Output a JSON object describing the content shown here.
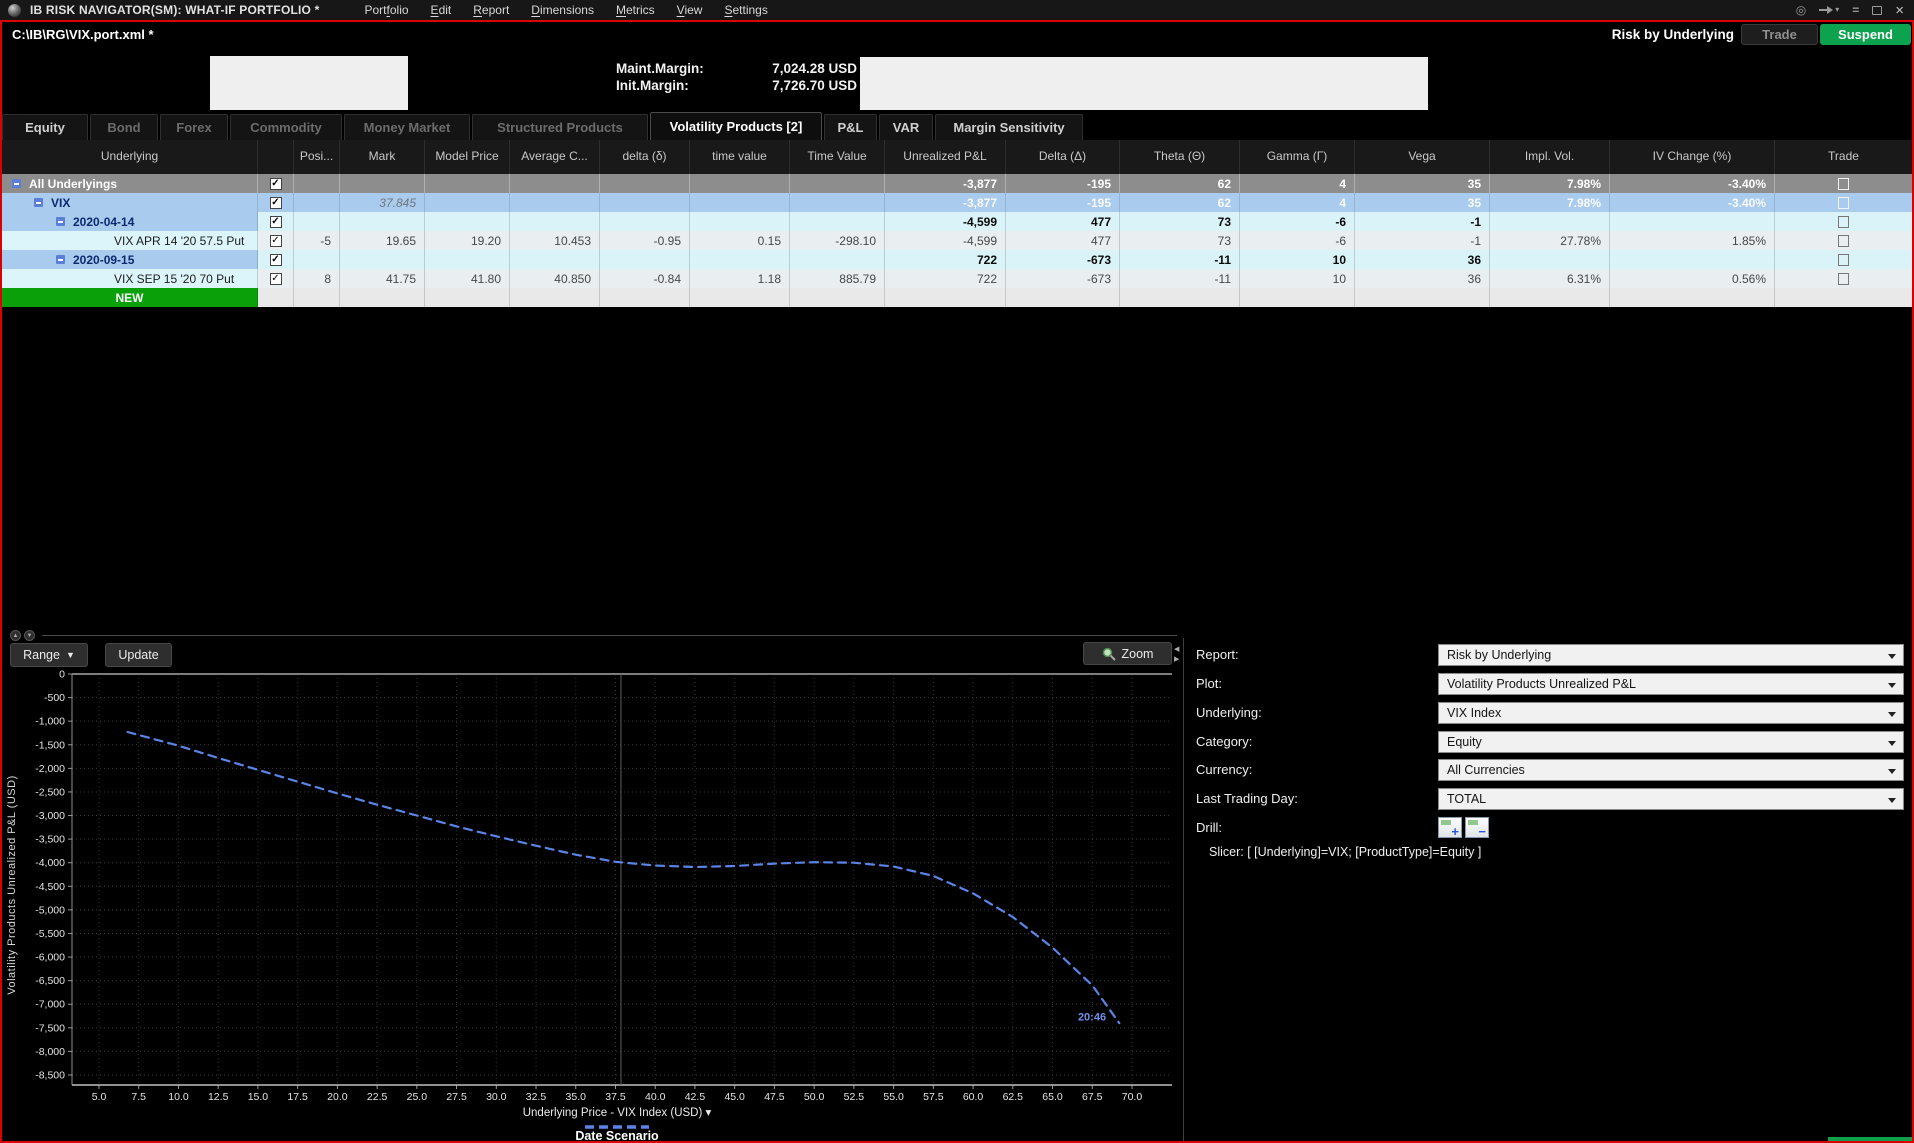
{
  "colors": {
    "frame_red": "#dd0000",
    "suspend_green": "#0ca24e",
    "new_row_green": "#0aa00a",
    "curve_blue": "#5b84e6",
    "row_blue": "#a9cbee",
    "row_cyan": "#d9f3f9",
    "row_selected_gray": "#8d8d8d"
  },
  "menubar": {
    "title": "IB RISK NAVIGATOR(SM): WHAT-IF PORTFOLIO *",
    "menus": [
      {
        "label": "Portfolio",
        "mnemonic": 4
      },
      {
        "label": "Edit",
        "mnemonic": 0
      },
      {
        "label": "Report",
        "mnemonic": 0
      },
      {
        "label": "Dimensions",
        "mnemonic": 0
      },
      {
        "label": "Metrics",
        "mnemonic": 0
      },
      {
        "label": "View",
        "mnemonic": 0
      },
      {
        "label": "Settings",
        "mnemonic": 0
      }
    ]
  },
  "titlebar": {
    "file_path": "C:\\IB\\RG\\VIX.port.xml *",
    "view_label": "Risk by Underlying",
    "trade": "Trade",
    "suspend": "Suspend"
  },
  "margin_info": {
    "maint_label": "Maint.Margin:",
    "maint_value": "7,024.28 USD",
    "init_label": "Init.Margin:",
    "init_value": "7,726.70 USD"
  },
  "tabs": [
    {
      "label": "Equity",
      "state": "enabled"
    },
    {
      "label": "Bond",
      "state": "disabled"
    },
    {
      "label": "Forex",
      "state": "disabled"
    },
    {
      "label": "Commodity",
      "state": "disabled"
    },
    {
      "label": "Money Market",
      "state": "disabled"
    },
    {
      "label": "Structured Products",
      "state": "disabled"
    },
    {
      "label": "Volatility Products [2]",
      "state": "active"
    },
    {
      "label": "P&L",
      "state": "enabled"
    },
    {
      "label": "VAR",
      "state": "enabled"
    },
    {
      "label": "Margin Sensitivity",
      "state": "enabled"
    }
  ],
  "table": {
    "columns": [
      "Underlying",
      "",
      "Posi...",
      "Mark",
      "Model Price",
      "Average C...",
      "delta (δ)",
      "time value",
      "Time Value",
      "Unrealized P&L",
      "Delta (Δ)",
      "Theta (Θ)",
      "Gamma (Γ)",
      "Vega",
      "Impl. Vol.",
      "IV Change (%)",
      "Trade"
    ],
    "rows": [
      {
        "label": "All Underlyings",
        "type": "total",
        "expander": true,
        "checked": true,
        "trade_box": true,
        "cells": [
          "",
          "",
          "",
          "",
          "",
          "",
          "",
          "-3,877",
          "-195",
          "62",
          "4",
          "35",
          "7.98%",
          "-3.40%"
        ]
      },
      {
        "label": "VIX",
        "type": "underlying",
        "expander": true,
        "checked": true,
        "trade_box": true,
        "cells": [
          "",
          "37.845",
          "",
          "",
          "",
          "",
          "",
          "-3,877",
          "-195",
          "62",
          "4",
          "35",
          "7.98%",
          "-3.40%"
        ]
      },
      {
        "label": "2020-04-14",
        "type": "date",
        "expander": true,
        "checked": true,
        "trade_box": true,
        "cells": [
          "",
          "",
          "",
          "",
          "",
          "",
          "",
          "-4,599",
          "477",
          "73",
          "-6",
          "-1",
          "",
          ""
        ]
      },
      {
        "label": "VIX APR 14 '20 57.5 Put",
        "type": "position",
        "expander": false,
        "checked": true,
        "trade_box": true,
        "cells": [
          "-5",
          "19.65",
          "19.20",
          "10.453",
          "-0.95",
          "0.15",
          "-298.10",
          "-4,599",
          "477",
          "73",
          "-6",
          "-1",
          "27.78%",
          "1.85%"
        ]
      },
      {
        "label": "2020-09-15",
        "type": "date",
        "expander": true,
        "checked": true,
        "trade_box": true,
        "cells": [
          "",
          "",
          "",
          "",
          "",
          "",
          "",
          "722",
          "-673",
          "-11",
          "10",
          "36",
          "",
          ""
        ]
      },
      {
        "label": "VIX SEP 15 '20 70 Put",
        "type": "position",
        "expander": false,
        "checked": true,
        "trade_box": true,
        "cells": [
          "8",
          "41.75",
          "41.80",
          "40.850",
          "-0.84",
          "1.18",
          "885.79",
          "722",
          "-673",
          "-11",
          "10",
          "36",
          "6.31%",
          "0.56%"
        ]
      },
      {
        "label": "NEW",
        "type": "new",
        "expander": false,
        "checked": false,
        "trade_box": false,
        "cells": [
          "",
          "",
          "",
          "",
          "",
          "",
          "",
          "",
          "",
          "",
          "",
          "",
          "",
          ""
        ]
      }
    ]
  },
  "chart_controls": {
    "range": "Range",
    "update": "Update",
    "zoom": "Zoom"
  },
  "chart_data": {
    "type": "line",
    "title": "",
    "xlabel": "Underlying Price - VIX Index (USD)",
    "ylabel": "Volatility Products Unrealized P&L (USD)",
    "xlim": [
      3.3,
      72.5
    ],
    "ylim": [
      -8700,
      0
    ],
    "grid": true,
    "x_ticks": [
      5.0,
      7.5,
      10.0,
      12.5,
      15.0,
      17.5,
      20.0,
      22.5,
      25.0,
      27.5,
      30.0,
      32.5,
      35.0,
      37.5,
      40.0,
      42.5,
      45.0,
      47.5,
      50.0,
      52.5,
      55.0,
      57.5,
      60.0,
      62.5,
      65.0,
      67.5,
      70.0
    ],
    "y_ticks": [
      0,
      -500,
      -1000,
      -1500,
      -2000,
      -2500,
      -3000,
      -3500,
      -4000,
      -4500,
      -5000,
      -5500,
      -6000,
      -6500,
      -7000,
      -7500,
      -8000,
      -8500
    ],
    "spot_line_x": 37.845,
    "legend": [
      {
        "name": "Date Scenario",
        "style": "dashed",
        "color": "#5b84e6",
        "position": "bottom"
      }
    ],
    "series": [
      {
        "name": "Date Scenario",
        "color": "#5b84e6",
        "dashed": true,
        "x": [
          6.8,
          10,
          12.5,
          15,
          17.5,
          20,
          22.5,
          25,
          27.5,
          30,
          32.5,
          35,
          37.5,
          40,
          42.5,
          45,
          47.5,
          50,
          52.5,
          55,
          57.5,
          60,
          62.5,
          65,
          67.5,
          69.2
        ],
        "y": [
          -1230,
          -1520,
          -1780,
          -2030,
          -2280,
          -2530,
          -2770,
          -3000,
          -3230,
          -3440,
          -3640,
          -3830,
          -3980,
          -4060,
          -4090,
          -4070,
          -4020,
          -3990,
          -4000,
          -4080,
          -4280,
          -4650,
          -5150,
          -5800,
          -6600,
          -7400
        ]
      }
    ],
    "annotations": [
      {
        "text": "20:46",
        "x": 66.6,
        "y": -7350,
        "color": "#6f8fe8"
      }
    ]
  },
  "report_panel": {
    "fields": [
      {
        "label": "Report:",
        "value": "Risk by Underlying"
      },
      {
        "label": "Plot:",
        "value": "Volatility Products Unrealized P&L"
      },
      {
        "label": "Underlying:",
        "value": "VIX Index"
      },
      {
        "label": "Category:",
        "value": "Equity"
      },
      {
        "label": "Currency:",
        "value": "All Currencies"
      },
      {
        "label": "Last Trading Day:",
        "value": "TOTAL"
      }
    ],
    "drill_label": "Drill:",
    "drill_buttons": [
      "+",
      "−"
    ],
    "slicer": "Slicer: [ [Underlying]=VIX; [ProductType]=Equity  ]"
  }
}
